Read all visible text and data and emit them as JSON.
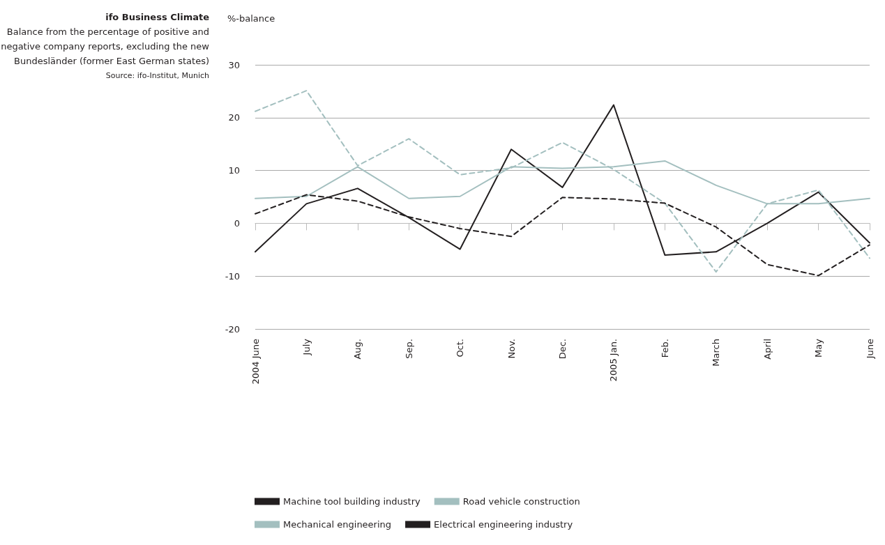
{
  "chart_data": {
    "type": "line",
    "title": "ifo Business Climate",
    "subtitle": "Balance from the percentage of positive and negative company reports, excluding the new Bundesländer (former East German states)",
    "annotations": [
      "Source: ifo-Institut, Munich"
    ],
    "ylabel": "%-balance",
    "categories": [
      "2004 June",
      "July",
      "Aug.",
      "Sep.",
      "Oct.",
      "Nov.",
      "Dec.",
      "2005 Jan.",
      "Feb.",
      "March",
      "April",
      "May",
      "June"
    ],
    "series": [
      {
        "name": "Machine tool building industry",
        "color": "#231f20",
        "line_style": "solid",
        "values": [
          -5.4,
          3.7,
          6.6,
          1.1,
          -4.9,
          14,
          6.8,
          22.4,
          -6,
          -5.4,
          0,
          5.9,
          -3.7
        ]
      },
      {
        "name": "Mechanical engineering",
        "color": "#a3bfbf",
        "line_style": "solid",
        "values": [
          4.7,
          5.1,
          10.7,
          4.7,
          5.1,
          10.7,
          10.4,
          10.7,
          11.8,
          7.2,
          3.7,
          3.7,
          4.7
        ]
      },
      {
        "name": "Road vehicle construction",
        "color": "#a3bfbf",
        "line_style": "dashed",
        "values": [
          21.2,
          25.1,
          10.9,
          16,
          9.2,
          10.5,
          15.3,
          10.2,
          3.8,
          -9.2,
          3.7,
          6.3,
          -6.6
        ]
      },
      {
        "name": "Electrical engineering industry",
        "color": "#231f20",
        "line_style": "dashed",
        "values": [
          1.8,
          5.4,
          4.2,
          1.2,
          -1,
          -2.5,
          4.9,
          4.6,
          3.8,
          -0.7,
          -7.8,
          -9.9,
          -4.1
        ]
      }
    ],
    "ylim": [
      -20,
      30
    ],
    "yticks": [
      -20,
      -10,
      0,
      10,
      20,
      30
    ],
    "grid": "y",
    "legend": "bottom",
    "marker": "none"
  }
}
